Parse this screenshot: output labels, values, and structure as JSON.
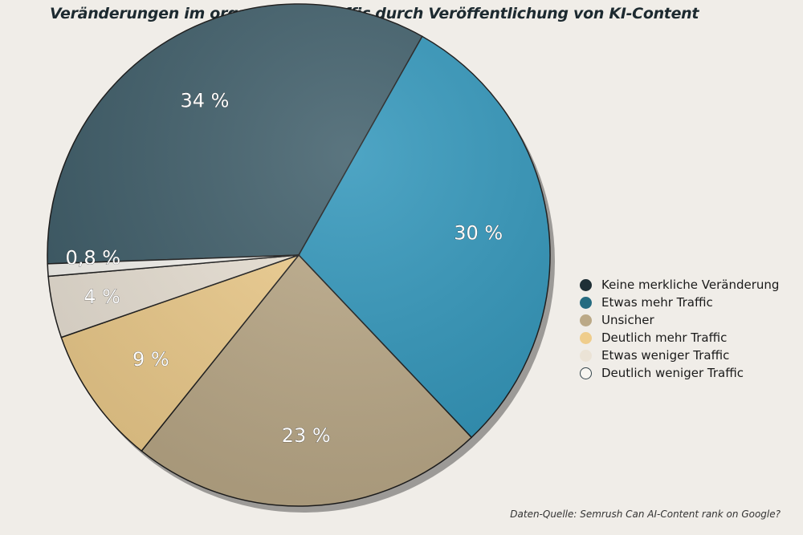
{
  "chart_data": {
    "type": "pie",
    "title": "Veränderungen im organischen Traffic durch Veröffentlichung von KI-Content",
    "slices": [
      {
        "name": "Keine merkliche Veränderung",
        "value": 34,
        "label": "34 %",
        "color": "#3e5d69"
      },
      {
        "name": "Etwas mehr Traffic",
        "value": 30,
        "label": "30 %",
        "color": "#2f95ba"
      },
      {
        "name": "Unsicher",
        "value": 23,
        "label": "23 %",
        "color": "#bba987"
      },
      {
        "name": "Deutlich mehr Traffic",
        "value": 9,
        "label": "9 %",
        "color": "#efcd8c"
      },
      {
        "name": "Etwas weniger Traffic",
        "value": 4,
        "label": "4 %",
        "color": "#ebe3d6"
      },
      {
        "name": "Deutlich weniger Traffic",
        "value": 0.8,
        "label": "0,8 %",
        "color": "#f8f6f1"
      }
    ],
    "legend_position": "right",
    "source": "Daten-Quelle: Semrush Can AI-Content rank on Google?"
  }
}
